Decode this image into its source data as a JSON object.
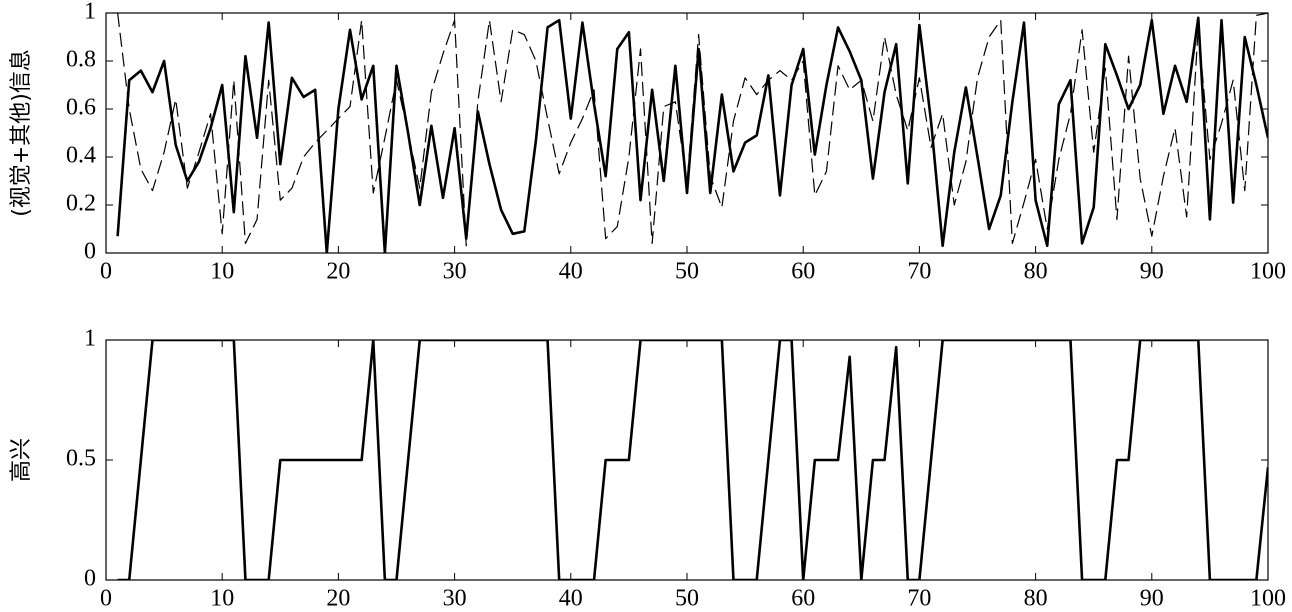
{
  "chart_data": [
    {
      "type": "line",
      "ylabel": "(视觉+其他)信息",
      "x": [
        1,
        2,
        3,
        4,
        5,
        6,
        7,
        8,
        9,
        10,
        11,
        12,
        13,
        14,
        15,
        16,
        17,
        18,
        19,
        20,
        21,
        22,
        23,
        24,
        25,
        26,
        27,
        28,
        29,
        30,
        31,
        32,
        33,
        34,
        35,
        36,
        37,
        38,
        39,
        40,
        41,
        42,
        43,
        44,
        45,
        46,
        47,
        48,
        49,
        50,
        51,
        52,
        53,
        54,
        55,
        56,
        57,
        58,
        59,
        60,
        61,
        62,
        63,
        64,
        65,
        66,
        67,
        68,
        69,
        70,
        71,
        72,
        73,
        74,
        75,
        76,
        77,
        78,
        79,
        80,
        81,
        82,
        83,
        84,
        85,
        86,
        87,
        88,
        89,
        90,
        91,
        92,
        93,
        94,
        95,
        96,
        97,
        98,
        99,
        100
      ],
      "series": [
        {
          "color": "#000000",
          "line_style": "solid",
          "values": [
            0.07,
            0.72,
            0.76,
            0.67,
            0.8,
            0.45,
            0.3,
            0.38,
            0.52,
            0.7,
            0.17,
            0.82,
            0.48,
            0.96,
            0.37,
            0.73,
            0.65,
            0.68,
            0.0,
            0.6,
            0.93,
            0.64,
            0.78,
            0.0,
            0.78,
            0.5,
            0.2,
            0.53,
            0.23,
            0.52,
            0.06,
            0.59,
            0.37,
            0.18,
            0.08,
            0.09,
            0.47,
            0.94,
            0.97,
            0.56,
            0.96,
            0.62,
            0.32,
            0.85,
            0.92,
            0.22,
            0.68,
            0.3,
            0.78,
            0.25,
            0.85,
            0.25,
            0.66,
            0.34,
            0.46,
            0.49,
            0.74,
            0.24,
            0.7,
            0.85,
            0.41,
            0.7,
            0.94,
            0.84,
            0.72,
            0.31,
            0.67,
            0.87,
            0.29,
            0.95,
            0.55,
            0.03,
            0.42,
            0.69,
            0.4,
            0.1,
            0.24,
            0.63,
            0.96,
            0.22,
            0.03,
            0.62,
            0.72,
            0.04,
            0.19,
            0.87,
            0.74,
            0.6,
            0.7,
            0.97,
            0.58,
            0.78,
            0.63,
            0.98,
            0.14,
            0.97,
            0.21,
            0.9,
            0.7,
            0.48
          ]
        },
        {
          "color": "#000000",
          "line_style": "dashed",
          "values": [
            1.0,
            0.6,
            0.35,
            0.26,
            0.42,
            0.64,
            0.27,
            0.42,
            0.58,
            0.08,
            0.72,
            0.04,
            0.14,
            0.72,
            0.22,
            0.27,
            0.4,
            0.46,
            0.51,
            0.56,
            0.61,
            0.97,
            0.25,
            0.48,
            0.72,
            0.5,
            0.27,
            0.67,
            0.83,
            0.97,
            0.03,
            0.63,
            0.97,
            0.63,
            0.93,
            0.91,
            0.8,
            0.56,
            0.33,
            0.46,
            0.56,
            0.68,
            0.06,
            0.11,
            0.4,
            0.85,
            0.04,
            0.61,
            0.63,
            0.29,
            0.91,
            0.32,
            0.19,
            0.55,
            0.73,
            0.66,
            0.72,
            0.76,
            0.72,
            0.8,
            0.24,
            0.34,
            0.78,
            0.68,
            0.72,
            0.55,
            0.9,
            0.66,
            0.51,
            0.73,
            0.44,
            0.58,
            0.2,
            0.38,
            0.73,
            0.9,
            0.97,
            0.04,
            0.21,
            0.39,
            0.1,
            0.39,
            0.58,
            0.93,
            0.42,
            0.77,
            0.14,
            0.82,
            0.31,
            0.07,
            0.32,
            0.52,
            0.15,
            0.94,
            0.39,
            0.54,
            0.72,
            0.26,
            0.99,
            1.0
          ]
        }
      ],
      "xlim": [
        0,
        100
      ],
      "xticks": [
        0,
        10,
        20,
        30,
        40,
        50,
        60,
        70,
        80,
        90,
        100
      ],
      "ylim": [
        0,
        1
      ],
      "yticks": [
        0,
        0.2,
        0.4,
        0.6,
        0.8,
        1
      ]
    },
    {
      "type": "line",
      "ylabel": "高兴",
      "x": [
        1,
        2,
        3,
        4,
        5,
        6,
        7,
        8,
        9,
        10,
        11,
        12,
        13,
        14,
        15,
        16,
        17,
        18,
        19,
        20,
        21,
        22,
        23,
        24,
        25,
        26,
        27,
        28,
        29,
        30,
        31,
        32,
        33,
        34,
        35,
        36,
        37,
        38,
        39,
        40,
        41,
        42,
        43,
        44,
        45,
        46,
        47,
        48,
        49,
        50,
        51,
        52,
        53,
        54,
        55,
        56,
        57,
        58,
        59,
        60,
        61,
        62,
        63,
        64,
        65,
        66,
        67,
        68,
        69,
        70,
        71,
        72,
        73,
        74,
        75,
        76,
        77,
        78,
        79,
        80,
        81,
        82,
        83,
        84,
        85,
        86,
        87,
        88,
        89,
        90,
        91,
        92,
        93,
        94,
        95,
        96,
        97,
        98,
        99,
        100
      ],
      "series": [
        {
          "color": "#000000",
          "line_style": "solid",
          "values": [
            0,
            0,
            0.5,
            1,
            1,
            1,
            1,
            1,
            1,
            1,
            1,
            0,
            0,
            0,
            0.5,
            0.5,
            0.5,
            0.5,
            0.5,
            0.5,
            0.5,
            0.5,
            1,
            0,
            0,
            0.5,
            1,
            1,
            1,
            1,
            1,
            1,
            1,
            1,
            1,
            1,
            1,
            1,
            0,
            0,
            0,
            0,
            0.5,
            0.5,
            0.5,
            1,
            1,
            1,
            1,
            1,
            1,
            1,
            1,
            0,
            0,
            0,
            0.5,
            1,
            1,
            0,
            0.5,
            0.5,
            0.5,
            0.93,
            0,
            0.5,
            0.5,
            0.97,
            0,
            0,
            0.5,
            1,
            1,
            1,
            1,
            1,
            1,
            1,
            1,
            1,
            1,
            1,
            1,
            0,
            0,
            0,
            0.5,
            0.5,
            1,
            1,
            1,
            1,
            1,
            1,
            0,
            0,
            0,
            0,
            0,
            0.47
          ]
        }
      ],
      "xlim": [
        0,
        100
      ],
      "xticks": [
        0,
        10,
        20,
        30,
        40,
        50,
        60,
        70,
        80,
        90,
        100
      ],
      "ylim": [
        0,
        1
      ],
      "yticks": [
        0,
        0.5,
        1
      ]
    }
  ]
}
